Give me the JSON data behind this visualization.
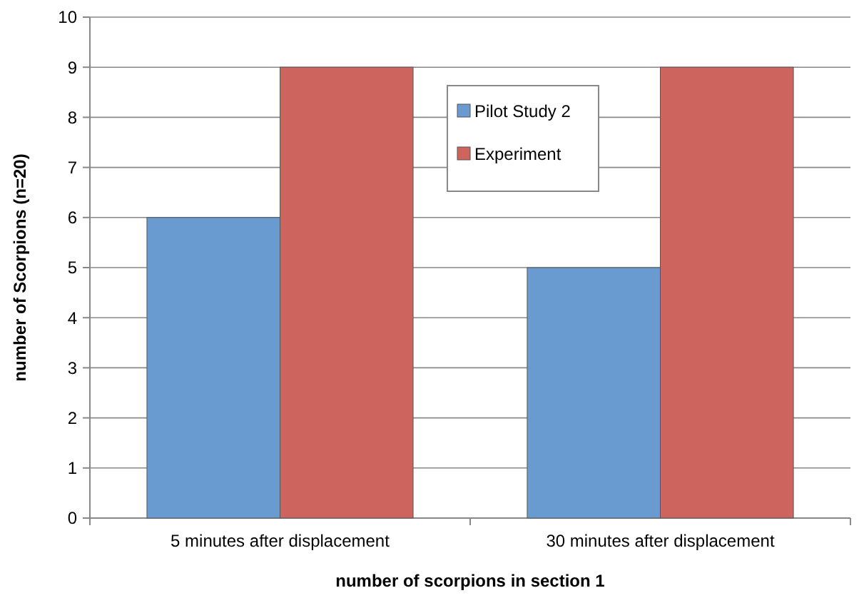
{
  "chart_data": {
    "type": "bar",
    "xlabel": "number of scorpions in section 1",
    "ylabel": "number of Scorpions (n=20)",
    "categories": [
      "5 minutes after displacement",
      "30 minutes after displacement"
    ],
    "series": [
      {
        "name": "Pilot Study 2",
        "color": "#6a9bd0",
        "values": [
          6,
          5
        ]
      },
      {
        "name": "Experiment",
        "color": "#cd645d",
        "values": [
          9,
          9
        ]
      }
    ],
    "ylim": [
      0,
      10
    ],
    "yticks": [
      0,
      1,
      2,
      3,
      4,
      5,
      6,
      7,
      8,
      9,
      10
    ],
    "grid": "y",
    "legend": "top"
  }
}
